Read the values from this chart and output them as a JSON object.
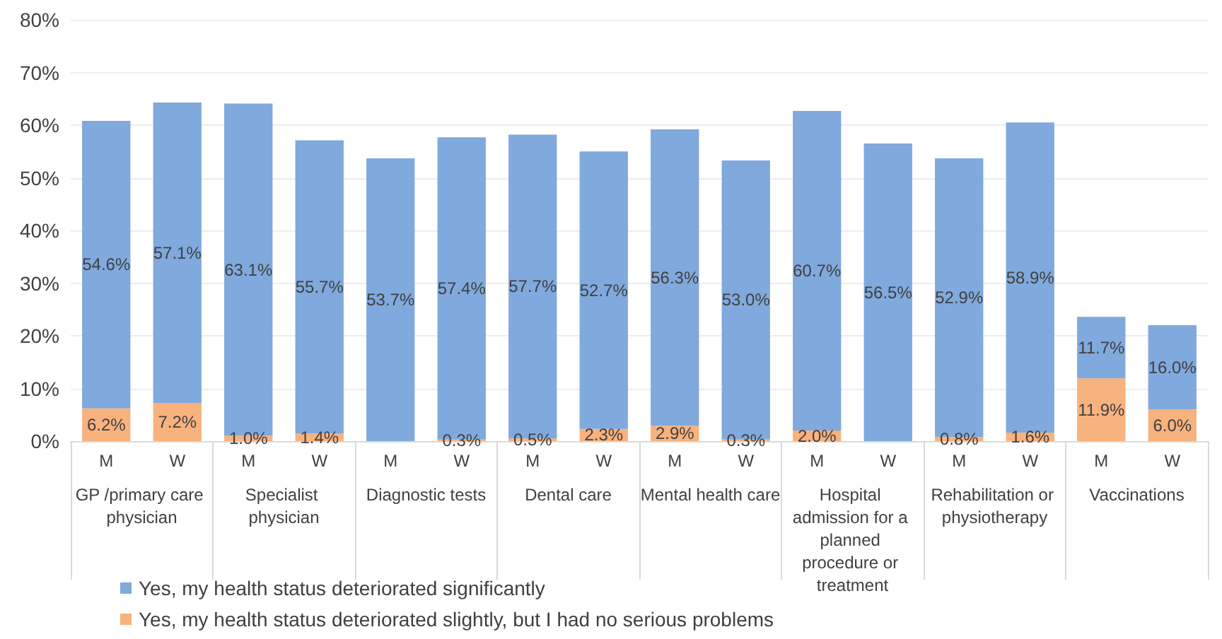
{
  "chart_data": {
    "type": "bar",
    "stacked": true,
    "grid": "y",
    "legend": "bottom",
    "categories": [
      "M",
      "W",
      "M",
      "W",
      "M",
      "W",
      "M",
      "W",
      "M",
      "W",
      "M",
      "W",
      "M",
      "W",
      "M",
      "W"
    ],
    "annotations": [
      "GP /primary care physician",
      "Specialist physician",
      "Diagnostic tests",
      "Dental care",
      "Mental health care",
      "Hospital admission for a planned procedure or treatment",
      "Rehabilitation or physiotherapy",
      "Vaccinations"
    ],
    "ylim": [
      0,
      80
    ],
    "yticks": [
      {
        "value": 0,
        "label": "0%"
      },
      {
        "value": 10,
        "label": "10%"
      },
      {
        "value": 20,
        "label": "20%"
      },
      {
        "value": 30,
        "label": "30%"
      },
      {
        "value": 40,
        "label": "40%"
      },
      {
        "value": 50,
        "label": "50%"
      },
      {
        "value": 60,
        "label": "60%"
      },
      {
        "value": 70,
        "label": "70%"
      },
      {
        "value": 80,
        "label": "80%"
      }
    ],
    "series": [
      {
        "name": "Yes, my health status deteriorated slightly, but I had no serious problems",
        "color": "#f8b27e",
        "values": [
          6.2,
          7.2,
          1.0,
          1.4,
          null,
          0.3,
          0.5,
          2.3,
          2.9,
          0.3,
          2.0,
          null,
          0.8,
          1.6,
          11.9,
          6.0
        ],
        "value_labels": [
          "6.2%",
          "7.2%",
          "1.0%",
          "1.4%",
          null,
          "0.3%",
          "0.5%",
          "2.3%",
          "2.9%",
          "0.3%",
          "2.0%",
          null,
          "0.8%",
          "1.6%",
          "11.9%",
          "6.0%"
        ]
      },
      {
        "name": "Yes, my health status deteriorated significantly",
        "color": "#80a9dd",
        "values": [
          54.6,
          57.1,
          63.1,
          55.7,
          53.7,
          57.4,
          57.7,
          52.7,
          56.3,
          53.0,
          60.7,
          56.5,
          52.9,
          58.9,
          11.7,
          16.0
        ],
        "value_labels": [
          "54.6%",
          "57.1%",
          "63.1%",
          "55.7%",
          "53.7%",
          "57.4%",
          "57.7%",
          "52.7%",
          "56.3%",
          "53.0%",
          "60.7%",
          "56.5%",
          "52.9%",
          "58.9%",
          "11.7%",
          "16.0%"
        ]
      }
    ]
  }
}
